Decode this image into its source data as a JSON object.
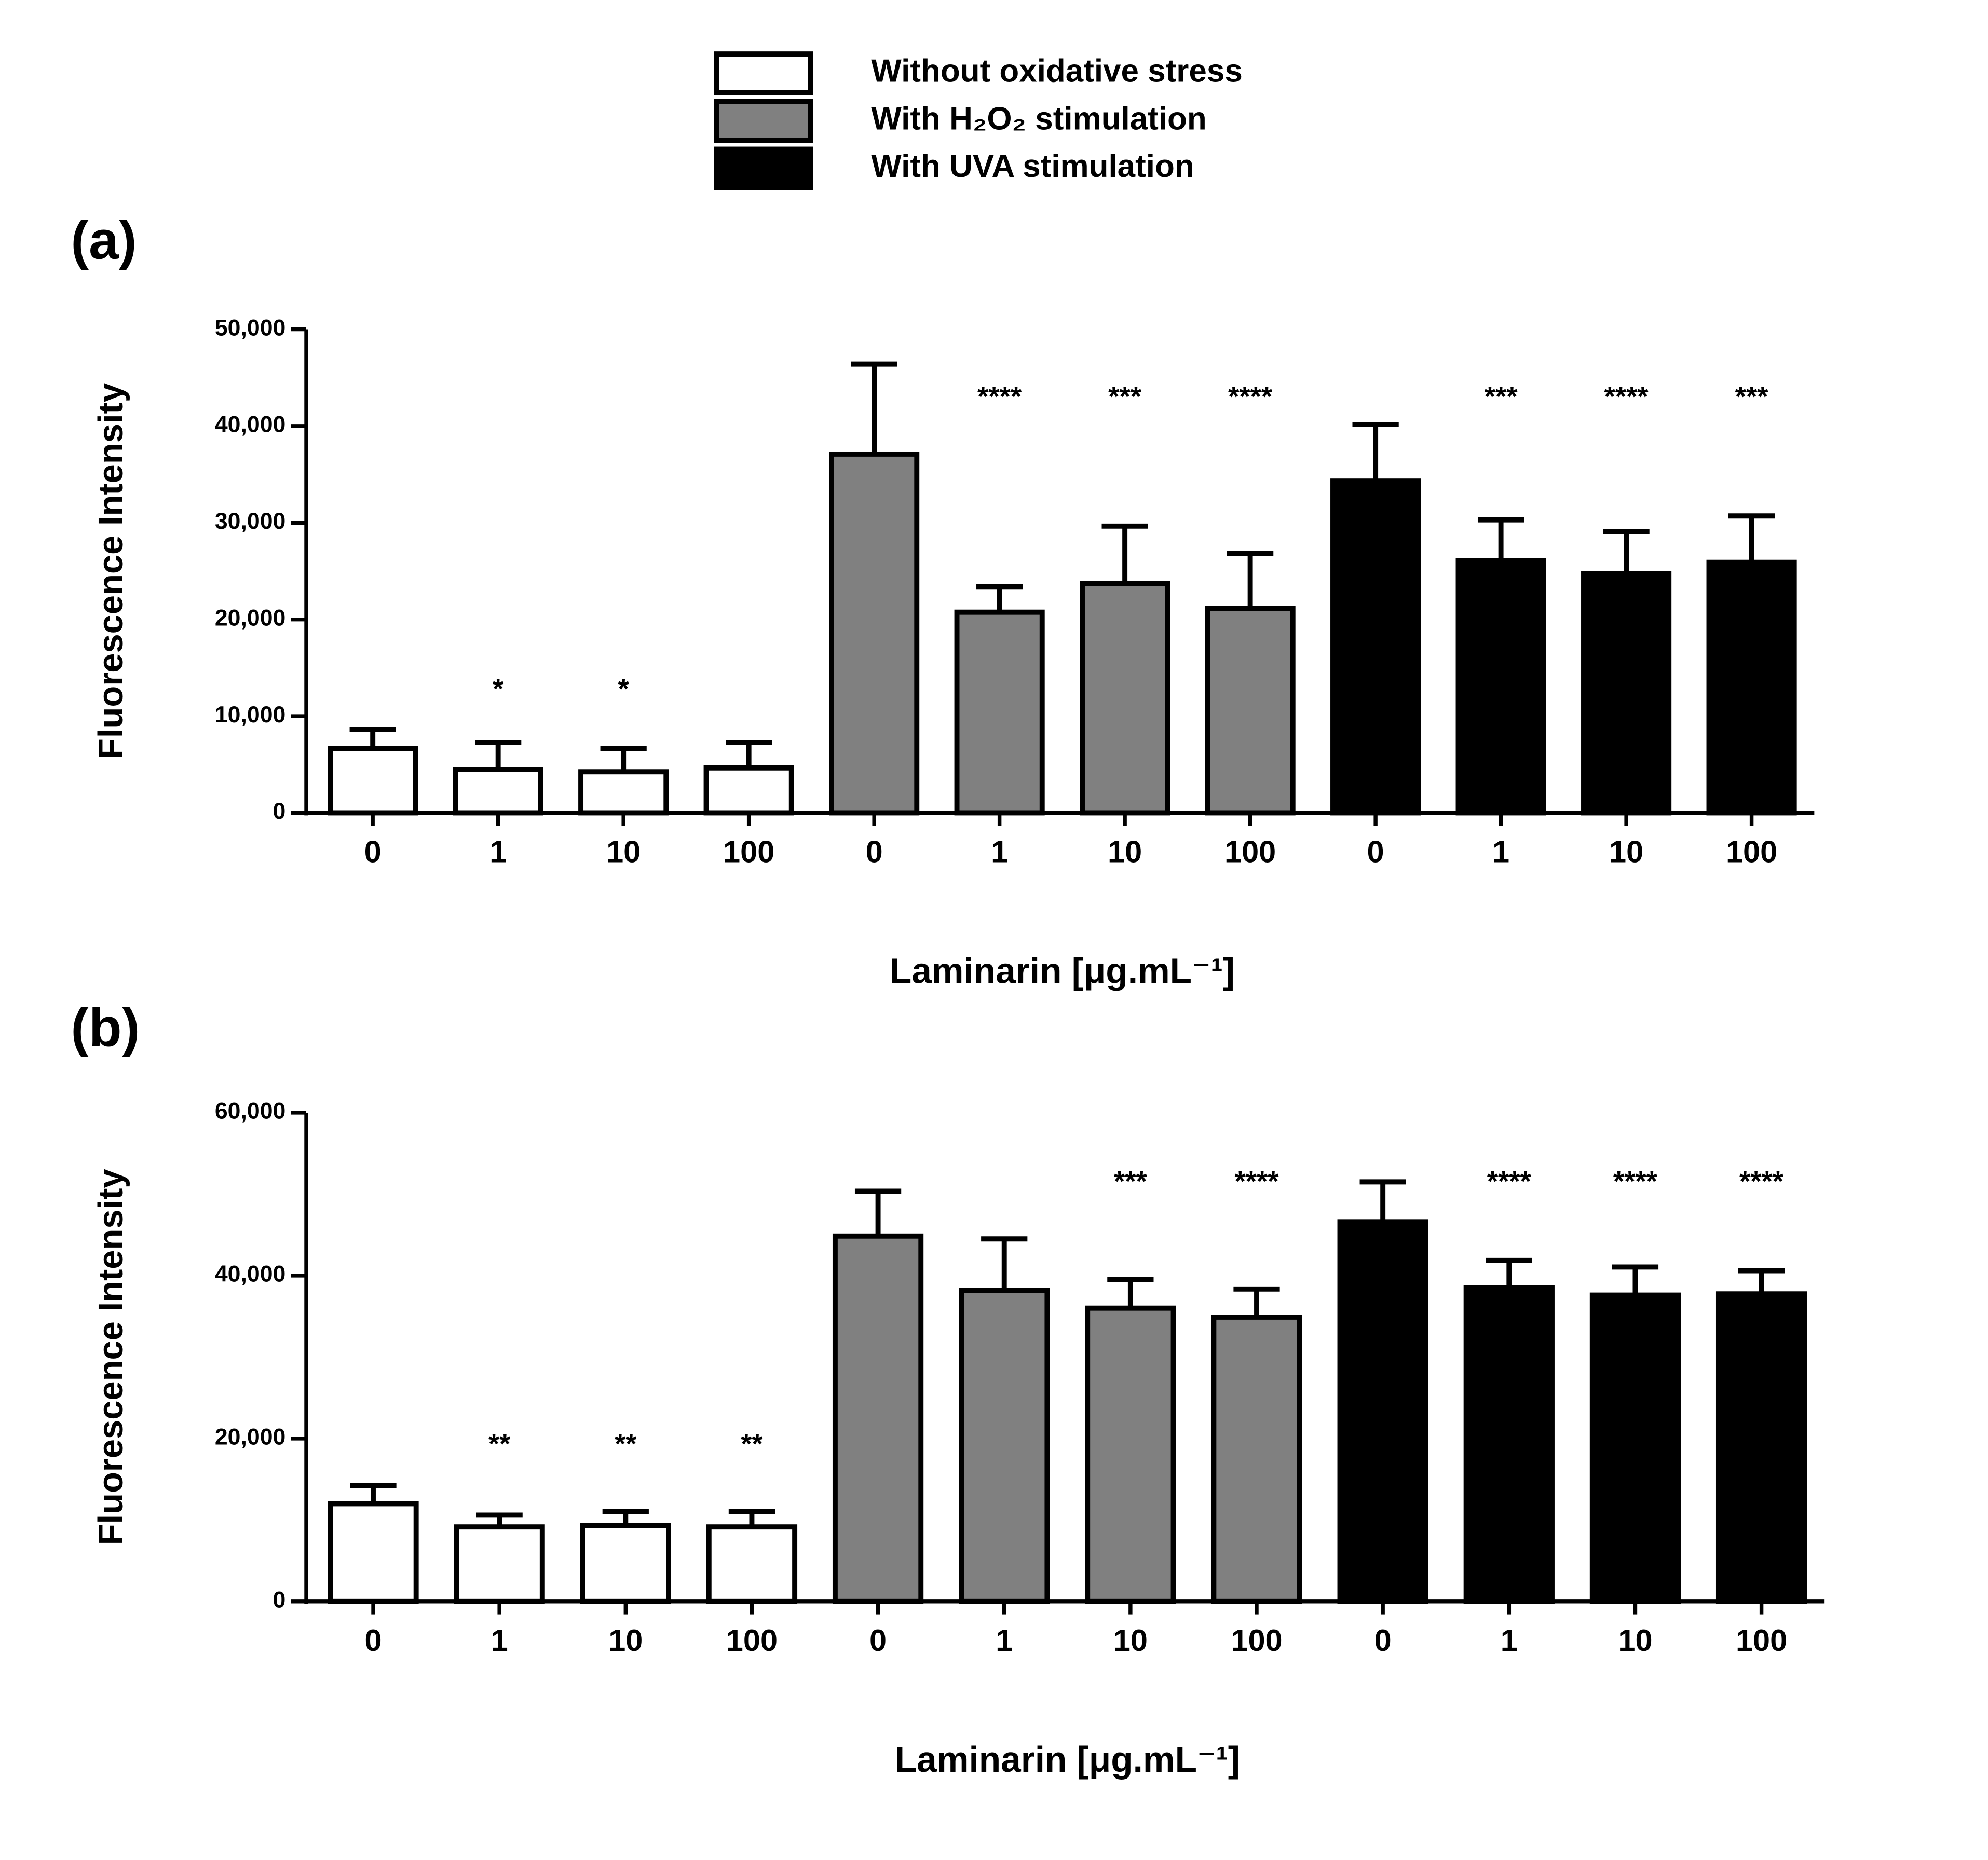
{
  "legend": [
    {
      "name": "Without oxidative stress",
      "color": "#ffffff"
    },
    {
      "name": "With H₂O₂ stimulation",
      "color": "#808080"
    },
    {
      "name": "With UVA stimulation",
      "color": "#000000"
    }
  ],
  "chart_data": [
    {
      "type": "bar",
      "panel": "(a)",
      "y_label": "Fluorescence Intensity",
      "x_label": "Laminarin [μg.mL⁻¹]",
      "categories": [
        "0",
        "1",
        "10",
        "100",
        "0",
        "1",
        "10",
        "100",
        "0",
        "1",
        "10",
        "100"
      ],
      "values": [
        6650,
        4500,
        4250,
        4650,
        37100,
        20750,
        23700,
        21150,
        34300,
        26050,
        24750,
        25900
      ],
      "errors": [
        2000,
        2800,
        2400,
        2650,
        9300,
        2650,
        5950,
        5700,
        5850,
        4250,
        4350,
        4800
      ],
      "colors": [
        "#ffffff",
        "#ffffff",
        "#ffffff",
        "#ffffff",
        "#808080",
        "#808080",
        "#808080",
        "#808080",
        "#000000",
        "#000000",
        "#000000",
        "#000000"
      ],
      "annotations": [
        null,
        "*",
        "*",
        null,
        null,
        "****",
        "***",
        "****",
        null,
        "***",
        "****",
        "***"
      ],
      "ylim": [
        0,
        50000
      ],
      "yticks": [
        0,
        {
          "value": 10000,
          "label": "10,000"
        },
        {
          "value": 20000,
          "label": "20,000"
        },
        {
          "value": 30000,
          "label": "30,000"
        },
        {
          "value": 40000,
          "label": "40,000"
        },
        {
          "value": 50000,
          "label": "50,000"
        }
      ]
    },
    {
      "type": "bar",
      "panel": "(b)",
      "y_label": "Fluorescence Intensity",
      "x_label": "Laminarin [μg.mL⁻¹]",
      "categories": [
        "0",
        "1",
        "10",
        "100",
        "0",
        "1",
        "10",
        "100",
        "0",
        "1",
        "10",
        "100"
      ],
      "values": [
        12000,
        9150,
        9300,
        9150,
        44850,
        38200,
        36000,
        34900,
        46600,
        38500,
        37600,
        37750
      ],
      "errors": [
        2200,
        1450,
        1750,
        1900,
        5500,
        6300,
        3500,
        3450,
        4900,
        3350,
        3450,
        2850
      ],
      "colors": [
        "#ffffff",
        "#ffffff",
        "#ffffff",
        "#ffffff",
        "#808080",
        "#808080",
        "#808080",
        "#808080",
        "#000000",
        "#000000",
        "#000000",
        "#000000"
      ],
      "annotations": [
        null,
        "**",
        "**",
        "**",
        null,
        null,
        "***",
        "****",
        null,
        "****",
        "****",
        "****"
      ],
      "ylim": [
        0,
        60000
      ],
      "yticks": [
        0,
        {
          "value": 20000,
          "label": "20,000"
        },
        {
          "value": 40000,
          "label": "40,000"
        },
        {
          "value": 60000,
          "label": "60,000"
        }
      ]
    }
  ]
}
